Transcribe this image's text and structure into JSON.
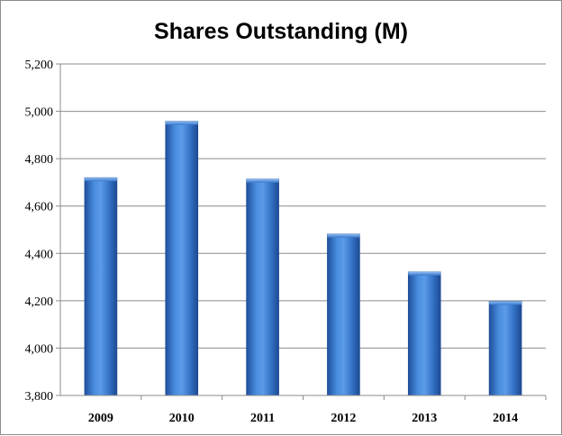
{
  "chart_data": {
    "type": "bar",
    "title": "Shares Outstanding (M)",
    "xlabel": "",
    "ylabel": "",
    "categories": [
      "2009",
      "2010",
      "2011",
      "2012",
      "2013",
      "2014"
    ],
    "values": [
      4720,
      4958,
      4714,
      4482,
      4322,
      4198
    ],
    "ylim": [
      3800,
      5200
    ],
    "yticks": [
      3800,
      4000,
      4200,
      4400,
      4600,
      4800,
      5000,
      5200
    ],
    "ytick_labels": [
      "3,800",
      "4,000",
      "4,200",
      "4,400",
      "4,600",
      "4,800",
      "5,000",
      "5,200"
    ],
    "grid": true,
    "legend": "none",
    "bar_color": "#2f6fc7"
  }
}
